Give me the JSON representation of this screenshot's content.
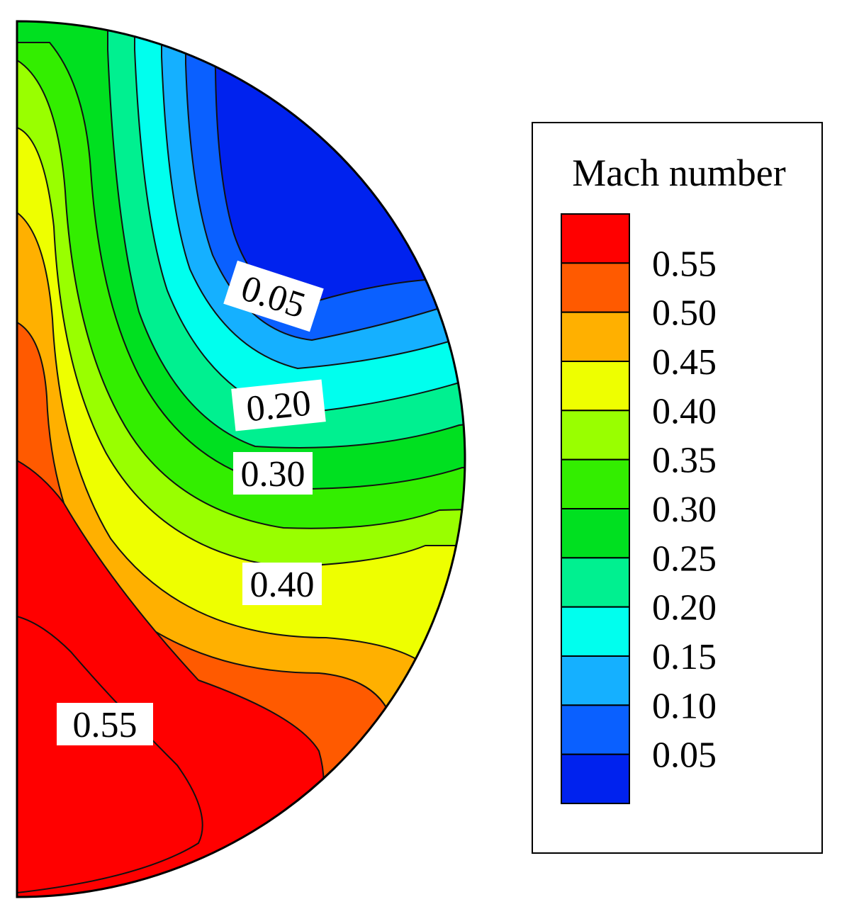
{
  "chart_data": {
    "type": "heatmap",
    "title": "",
    "legend": {
      "title": "Mach number",
      "placement": "right",
      "levels": [
        {
          "value": "0.55",
          "color": "#ff0000"
        },
        {
          "value": "0.50",
          "color": "#ff5a00"
        },
        {
          "value": "0.45",
          "color": "#ffb000"
        },
        {
          "value": "0.40",
          "color": "#eeff00"
        },
        {
          "value": "0.35",
          "color": "#99ff00"
        },
        {
          "value": "0.30",
          "color": "#33ee00"
        },
        {
          "value": "0.25",
          "color": "#00e020"
        },
        {
          "value": "0.20",
          "color": "#00f090"
        },
        {
          "value": "0.15",
          "color": "#00ffee"
        },
        {
          "value": "0.10",
          "color": "#15b0ff"
        },
        {
          "value": "0.05",
          "color": "#0a60ff"
        },
        {
          "value": "",
          "color": "#0022ee"
        }
      ]
    },
    "contour_labels": [
      {
        "text": "0.05",
        "level": 0.05
      },
      {
        "text": "0.20",
        "level": 0.2
      },
      {
        "text": "0.30",
        "level": 0.3
      },
      {
        "text": "0.40",
        "level": 0.4
      },
      {
        "text": "0.55",
        "level": 0.55
      }
    ]
  }
}
